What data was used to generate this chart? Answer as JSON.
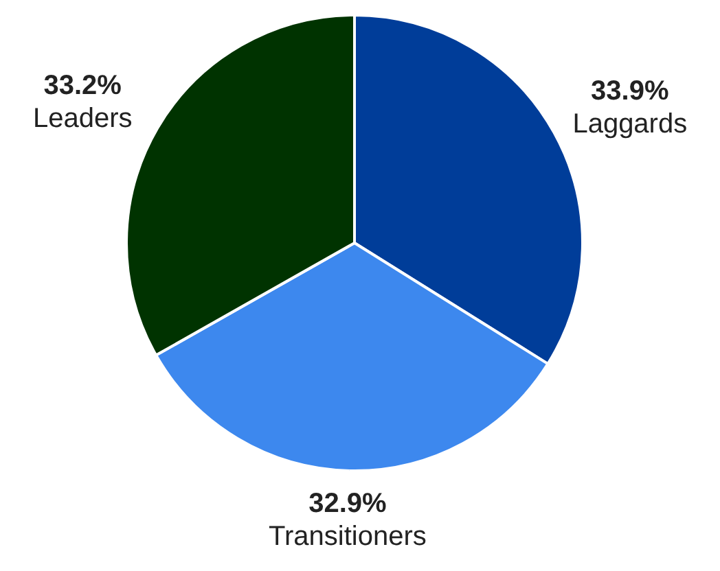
{
  "chart_data": {
    "type": "pie",
    "categories": [
      "Laggards",
      "Transitioners",
      "Leaders"
    ],
    "values": [
      33.9,
      32.9,
      33.2
    ],
    "colors": [
      "#003d99",
      "#3d88ee",
      "#003300"
    ],
    "value_labels": [
      "33.9%",
      "32.9%",
      "33.2%"
    ],
    "legend": false
  }
}
